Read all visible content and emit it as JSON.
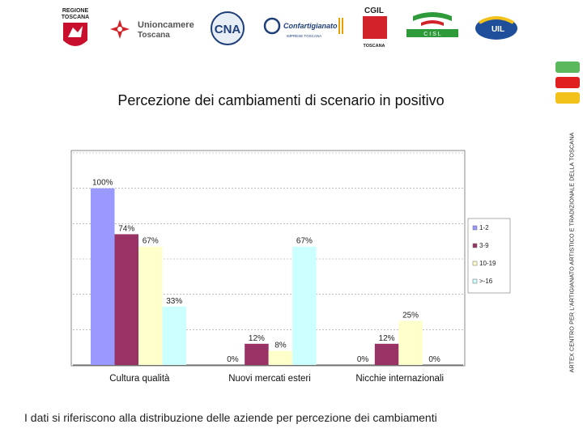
{
  "header": {
    "logos": [
      {
        "name": "regione-toscana",
        "line1": "REGIONE",
        "line2": "TOSCANA"
      },
      {
        "name": "unioncamere-toscana",
        "line1": "Unioncamere",
        "line2": "Toscana"
      },
      {
        "name": "cna",
        "text": "CNA"
      },
      {
        "name": "confartigianato",
        "text": "Confartigianato",
        "sub": "IMPRESE TOSCANA"
      },
      {
        "name": "cgil-toscana",
        "text": "CGIL",
        "sub": "TOSCANA"
      },
      {
        "name": "cisl",
        "text": "C I S L"
      },
      {
        "name": "uil",
        "text": "UIL"
      }
    ]
  },
  "side_text": "ARTEX CENTRO PER L'ARTIGIANATO ARTISTICO E TRADIZIONALE DELLA TOSCANA",
  "colors": {
    "block_green": "#5cb85c",
    "block_red": "#e02020",
    "block_yellow": "#f2c21b"
  },
  "title": "Percezione dei cambiamenti di scenario in positivo",
  "footer": "I dati si riferiscono alla distribuzione delle aziende per percezione dei cambiamenti",
  "chart_data": {
    "type": "bar",
    "title": "Percezione dei cambiamenti di scenario in positivo",
    "categories": [
      "Cultura qualità",
      "Nuovi mercati esteri",
      "Nicchie internazionali"
    ],
    "ylim": [
      0,
      120
    ],
    "grid": true,
    "legend_position": "right",
    "series": [
      {
        "name": "1-2",
        "color": "#9999ff",
        "values": [
          100,
          0,
          0
        ],
        "labels": [
          "100%",
          "0%",
          "0%"
        ]
      },
      {
        "name": "3-9",
        "color": "#993366",
        "values": [
          74,
          12,
          12
        ],
        "labels": [
          "74%",
          "12%",
          "12%"
        ]
      },
      {
        "name": "10-19",
        "color": "#ffffcc",
        "values": [
          67,
          8,
          25
        ],
        "labels": [
          "67%",
          "8%",
          "25%"
        ]
      },
      {
        "name": ">-16",
        "color": "#ccffff",
        "values": [
          33,
          67,
          0
        ],
        "labels": [
          "33%",
          "67%",
          "0%"
        ]
      }
    ]
  }
}
